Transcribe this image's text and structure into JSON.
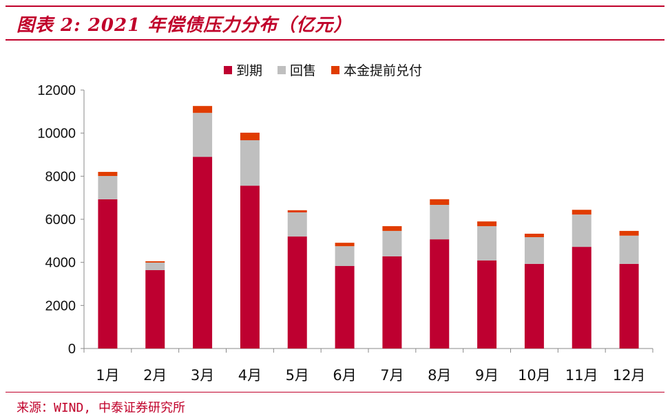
{
  "title": "图表 2: 2021 年偿债压力分布（亿元）",
  "source": "来源：WIND, 中泰证券研究所",
  "chart_data": {
    "type": "bar",
    "stacked": true,
    "title": "图表 2: 2021 年偿债压力分布（亿元）",
    "categories": [
      "1月",
      "2月",
      "3月",
      "4月",
      "5月",
      "6月",
      "7月",
      "8月",
      "9月",
      "10月",
      "11月",
      "12月"
    ],
    "series": [
      {
        "name": "到期",
        "color": "#be0030",
        "values": [
          6930,
          3640,
          8900,
          7560,
          5200,
          3830,
          4280,
          5070,
          4090,
          3930,
          4720,
          3930
        ]
      },
      {
        "name": "回售",
        "color": "#bfbfbf",
        "values": [
          1080,
          350,
          2040,
          2110,
          1120,
          920,
          1180,
          1600,
          1590,
          1240,
          1500,
          1310
        ]
      },
      {
        "name": "本金提前兑付",
        "color": "#e03c00",
        "values": [
          190,
          60,
          320,
          350,
          100,
          160,
          220,
          260,
          220,
          160,
          220,
          220
        ]
      }
    ],
    "yticks": [
      "0",
      "2000",
      "4000",
      "6000",
      "8000",
      "10000",
      "12000"
    ],
    "ylim": [
      0,
      12000
    ],
    "legend": "top",
    "grid": false
  }
}
